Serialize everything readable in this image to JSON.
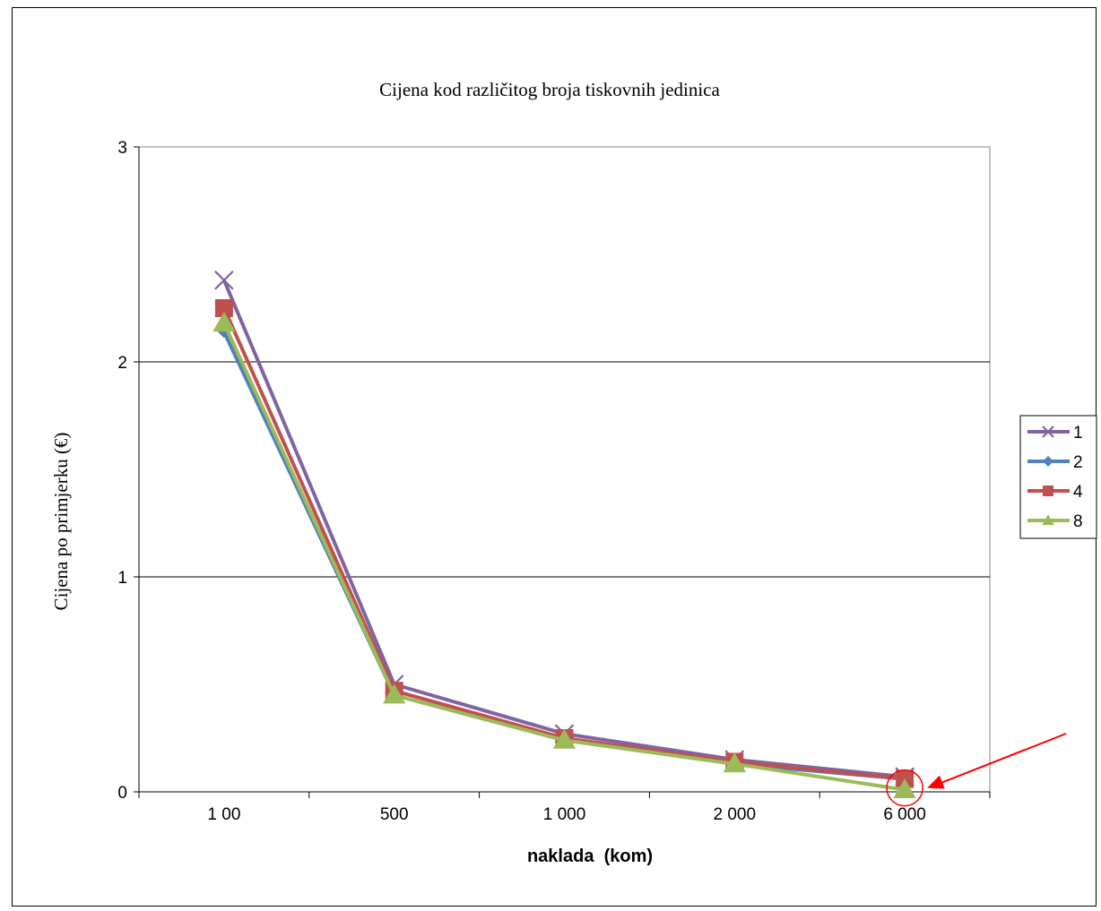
{
  "chart_data": {
    "type": "line",
    "title": "Cijena kod različitog broja tiskovnih jedinica",
    "xlabel": "naklada  (kom)",
    "ylabel": "Cijena po primjerku (€)",
    "categories": [
      "1 00",
      "500",
      "1 000",
      "2 000",
      "6 000"
    ],
    "yticks": [
      "0",
      "1",
      "2",
      "3"
    ],
    "ylim": [
      0,
      3
    ],
    "grid": true,
    "legend_position": "right",
    "series": [
      {
        "name": "1",
        "color": "#8064A2",
        "marker": "x",
        "values": [
          2.38,
          0.5,
          0.27,
          0.15,
          0.07
        ]
      },
      {
        "name": "2",
        "color": "#4F81BD",
        "marker": "diamond",
        "values": [
          2.14,
          0.45,
          0.24,
          0.13,
          0.06
        ]
      },
      {
        "name": "4",
        "color": "#C0504D",
        "marker": "square",
        "values": [
          2.25,
          0.47,
          0.25,
          0.14,
          0.06
        ]
      },
      {
        "name": "8",
        "color": "#9BBB59",
        "marker": "triangle",
        "values": [
          2.18,
          0.45,
          0.24,
          0.13,
          0.01
        ]
      }
    ],
    "annotation": {
      "type": "circle-and-arrow",
      "target_series": "8",
      "target_category": "6 000",
      "color": "#FF0000"
    }
  }
}
